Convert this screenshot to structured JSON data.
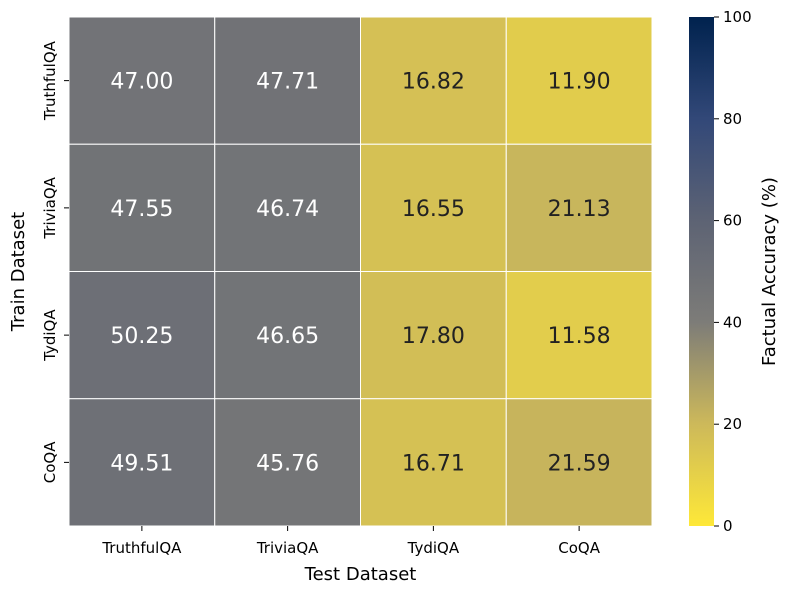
{
  "chart_data": {
    "type": "heatmap",
    "title": "",
    "xlabel": "Test Dataset",
    "ylabel": "Train Dataset",
    "x_categories": [
      "TruthfulQA",
      "TriviaQA",
      "TydiQA",
      "CoQA"
    ],
    "y_categories": [
      "TruthfulQA",
      "TriviaQA",
      "TydiQA",
      "CoQA"
    ],
    "values": [
      [
        47.0,
        47.71,
        16.82,
        11.9
      ],
      [
        47.55,
        46.74,
        16.55,
        21.13
      ],
      [
        50.25,
        46.65,
        17.8,
        11.58
      ],
      [
        49.51,
        45.76,
        16.71,
        21.59
      ]
    ],
    "labels": [
      [
        "47.00",
        "47.71",
        "16.82",
        "11.90"
      ],
      [
        "47.55",
        "46.74",
        "16.55",
        "21.13"
      ],
      [
        "50.25",
        "46.65",
        "17.80",
        "11.58"
      ],
      [
        "49.51",
        "45.76",
        "16.71",
        "21.59"
      ]
    ],
    "colorbar": {
      "label": "Factual Accuracy (%)",
      "range": [
        0,
        100
      ],
      "ticks": [
        "0",
        "20",
        "40",
        "60",
        "80",
        "100"
      ],
      "colormap": "cividis_r"
    },
    "colors": {
      "low": "#fee838",
      "mid": "#7c7b78",
      "high": "#00224e",
      "grid_line": "#ffffff",
      "text_light": "#ffffff",
      "text_dark": "#222222"
    },
    "grid": false
  }
}
